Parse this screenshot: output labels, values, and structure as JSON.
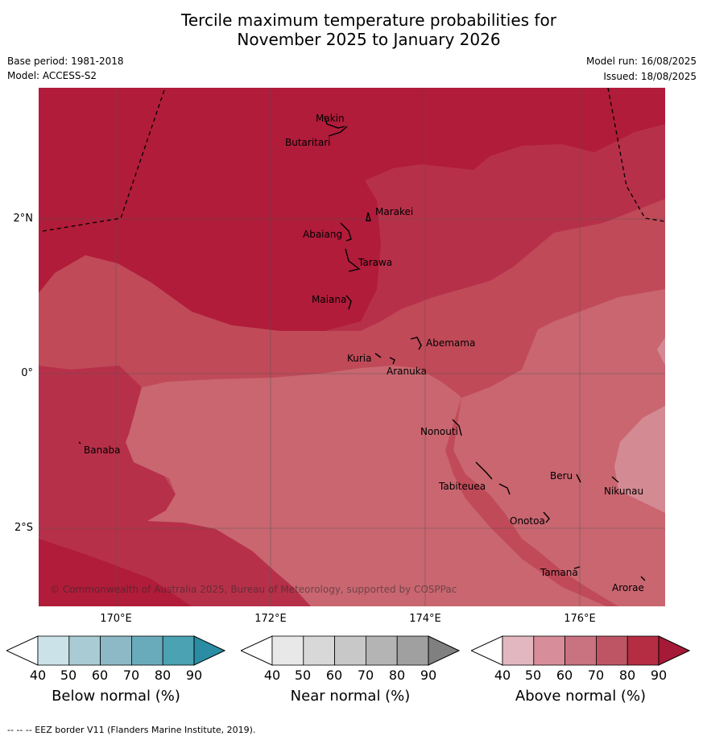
{
  "title_line1": "Tercile maximum temperature probabilities for",
  "title_line2": "November 2025 to January 2026",
  "base_period": "Base period: 1981-2018",
  "model": "Model: ACCESS-S2",
  "model_run": "Model run: 16/08/2025",
  "issued": "Issued: 18/08/2025",
  "y_axis_labels": [
    "2°N",
    "0°",
    "2°S"
  ],
  "x_axis_labels": [
    "170°E",
    "172°E",
    "174°E",
    "176°E"
  ],
  "places": [
    "Makin",
    "Butaritari",
    "Marakei",
    "Abaiang",
    "Tarawa",
    "Maiana",
    "Abemama",
    "Kuria",
    "Aranuka",
    "Nonouti",
    "Banaba",
    "Beru",
    "Tabiteuea",
    "Nikunau",
    "Onotoa",
    "Tamana",
    "Arorae"
  ],
  "copyright": "© Commonwealth of Australia 2025, Bureau of Meteorology, supported by COSPPac",
  "colorbars": [
    {
      "label": "Below normal (%)",
      "ticks": [
        "40",
        "50",
        "60",
        "70",
        "80",
        "90"
      ],
      "colors": [
        "#ffffff",
        "#cbe2e8",
        "#a9cbd3",
        "#8cb9c5",
        "#6aabbb",
        "#4aa2b3",
        "#2a8da3"
      ]
    },
    {
      "label": "Near normal (%)",
      "ticks": [
        "40",
        "50",
        "60",
        "70",
        "80",
        "90"
      ],
      "colors": [
        "#ffffff",
        "#e8e8e8",
        "#d8d8d8",
        "#c8c8c8",
        "#b4b4b4",
        "#a0a0a0",
        "#808080"
      ]
    },
    {
      "label": "Above normal (%)",
      "ticks": [
        "40",
        "50",
        "60",
        "70",
        "80",
        "90"
      ],
      "colors": [
        "#ffffff",
        "#e2b7bf",
        "#d78e9a",
        "#c97280",
        "#bd5565",
        "#b42d43",
        "#a51a37"
      ]
    }
  ],
  "legend_colors": {
    "p90": "#b01c3a",
    "p80": "#b7304a",
    "p70": "#c04a58",
    "p60": "#c96670",
    "p50": "#d48a93"
  },
  "footer": "--  --  -- EEZ border V11 (Flanders Marine Institute, 2019)."
}
